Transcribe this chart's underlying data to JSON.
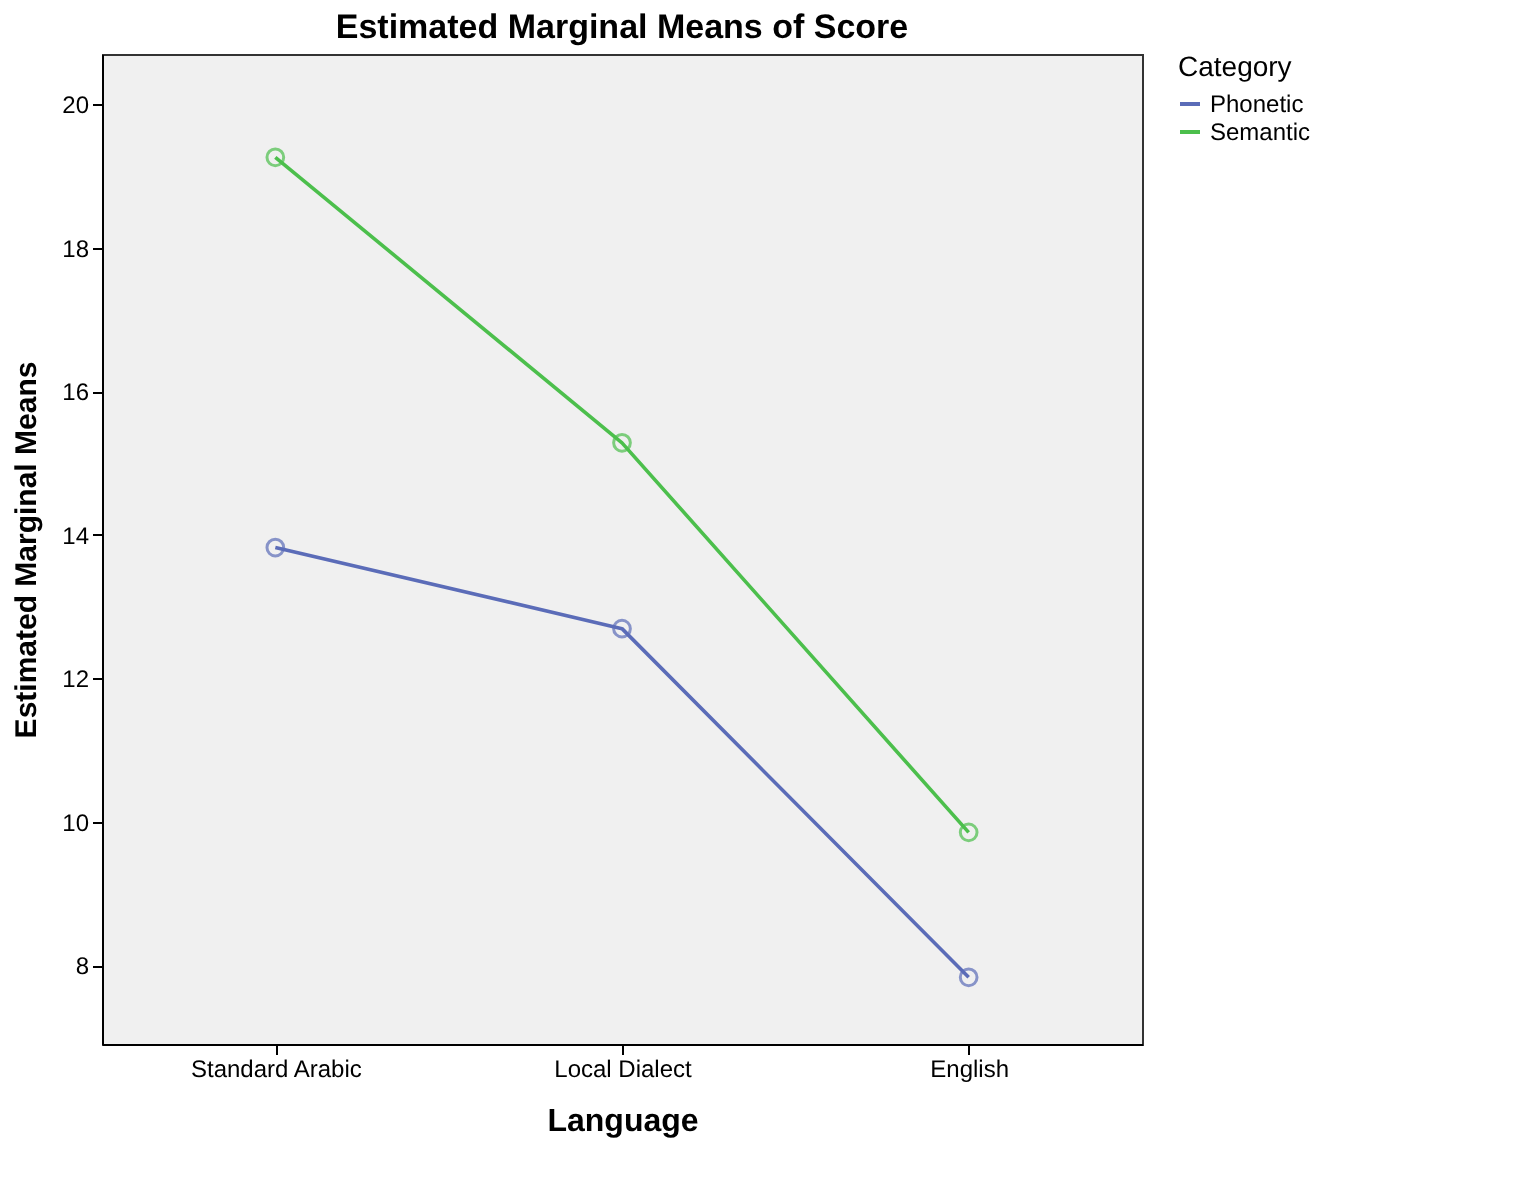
{
  "chart_data": {
    "type": "line",
    "title": "Estimated Marginal Means of Score",
    "xlabel": "Language",
    "ylabel": "Estimated Marginal Means",
    "legend_title": "Category",
    "categories": [
      "Standard Arabic",
      "Local Dialect",
      "English"
    ],
    "series": [
      {
        "name": "Phonetic",
        "color": "#5b6cb8",
        "values": [
          13.82,
          12.69,
          7.83
        ]
      },
      {
        "name": "Semantic",
        "color": "#4cbf4c",
        "values": [
          19.26,
          15.28,
          9.85
        ]
      }
    ],
    "ylim": [
      6.9,
      20.7
    ],
    "yticks": [
      8,
      10,
      12,
      14,
      16,
      18,
      20
    ],
    "grid": false,
    "legend": "top right",
    "marker": "circle",
    "line_style": "solid"
  }
}
